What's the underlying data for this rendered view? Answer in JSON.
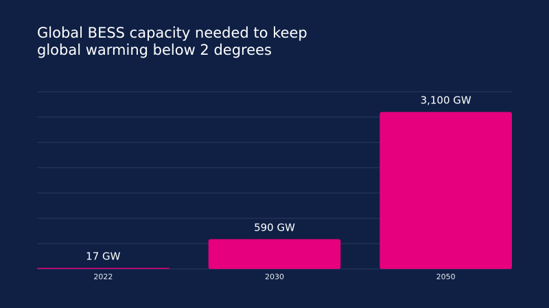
{
  "colors": {
    "background": "#0f2044",
    "bar": "#e6007e",
    "gridline": "#2a3a5e",
    "text": "#ffffff"
  },
  "chart_data": {
    "type": "bar",
    "title_lines": [
      "Global BESS capacity needed to keep",
      "global warming below 2 degrees"
    ],
    "categories": [
      "2022",
      "2030",
      "2050"
    ],
    "values": [
      17,
      590,
      3100
    ],
    "data_labels": [
      "17 GW",
      "590 GW",
      "3,100 GW"
    ],
    "unit": "GW",
    "xlabel": "",
    "ylabel": "",
    "ylim": [
      0,
      3500
    ],
    "grid": true,
    "y_axis_labels_shown": false,
    "legend": "none"
  }
}
